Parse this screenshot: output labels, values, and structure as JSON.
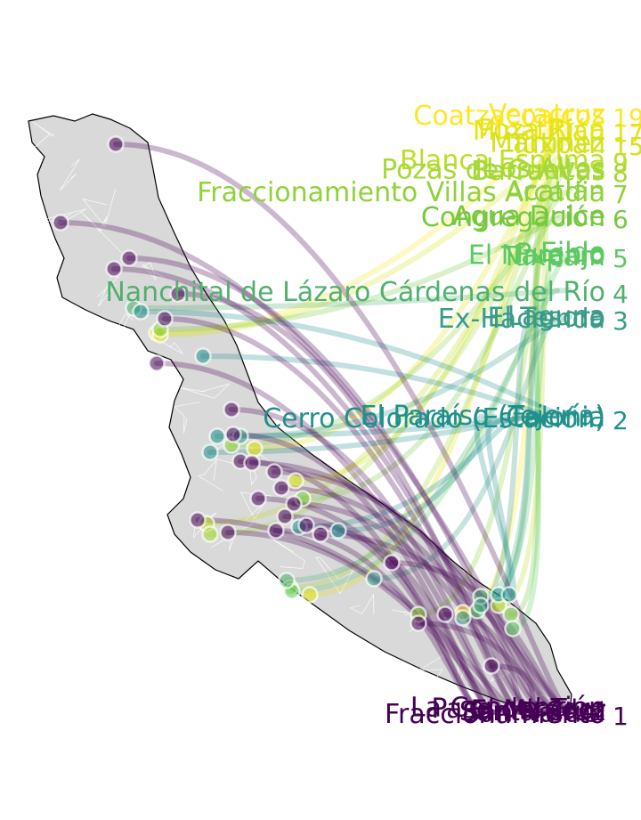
{
  "map": {
    "state_fill": "#d9d9d9",
    "border_color": "#ffffff",
    "outline_color": "#000000",
    "colors": {
      "1": "#440154",
      "2": "#21908c",
      "3": "#3b9b88",
      "4": "#50b06f",
      "5": "#5ec962",
      "6": "#78c83f",
      "7": "#8fd23a",
      "8": "#a6d83a",
      "9": "#bddf26",
      "15": "#d6e21d",
      "17": "#e7e419",
      "19": "#fde725"
    },
    "groups": [
      {
        "id": "19",
        "number": "19",
        "labels": [
          "Coatzacoalcos",
          "Veracruz"
        ]
      },
      {
        "id": "17",
        "number": "17",
        "labels": [
          "Minatitlán",
          "Poza Rica"
        ]
      },
      {
        "id": "15",
        "number": "15",
        "labels": [
          "Tuxpan",
          "Martínez"
        ]
      },
      {
        "id": "9",
        "number": "9",
        "labels": [
          "Blanca Espuma"
        ]
      },
      {
        "id": "8",
        "number": "8",
        "labels": [
          "Barrancas",
          "Pozas de Cuevas",
          "Los Altos"
        ]
      },
      {
        "id": "7",
        "number": "7",
        "labels": [
          "Fraccionamiento Villas Arcadia",
          "Acatlán"
        ]
      },
      {
        "id": "6",
        "number": "6",
        "labels": [
          "Congregación",
          "Agua Dulce"
        ]
      },
      {
        "id": "5",
        "number": "5",
        "labels": [
          "Túxpam",
          "El Naranjo",
          "Pueblo",
          "Ejido"
        ]
      },
      {
        "id": "4",
        "number": "4",
        "labels": [
          "Nanchital de Lázaro Cárdenas del Río"
        ]
      },
      {
        "id": "3",
        "number": "3",
        "labels": [
          "Ex-Hacienda",
          "El Tesoro",
          "Laguna"
        ]
      },
      {
        "id": "2",
        "number": "2",
        "labels": [
          "Cerro Colorado (Estación)",
          "Colonia",
          "El Paraíso (Tejería)"
        ]
      },
      {
        "id": "1",
        "number": "1",
        "labels": [
          "Fraccionamiento",
          "San Rafael",
          "Santa Cruz",
          "El Mirador",
          "Paso del Toro",
          "La Concepción"
        ]
      }
    ]
  }
}
